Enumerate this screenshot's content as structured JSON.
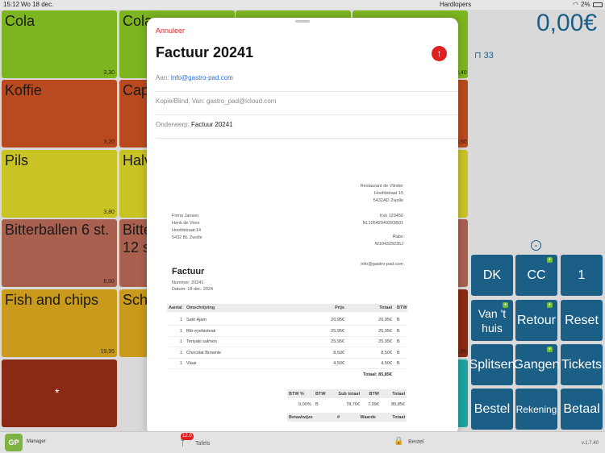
{
  "status_bar": {
    "time": "15:12",
    "date": "Wo 18 dec.",
    "center": "Hardlopers",
    "battery": "2%"
  },
  "total": {
    "amount": "0,00",
    "currency": "€"
  },
  "table_indicator": "33",
  "tiles": [
    {
      "name": "Cola",
      "price": "3,30",
      "color": "#7db51f"
    },
    {
      "name": "Koffie",
      "price": "3,20",
      "color": "#b94a1f"
    },
    {
      "name": "Pils",
      "price": "3,80",
      "color": "#c9c325"
    },
    {
      "name": "Bitterballen 6 st.",
      "price": "8,00",
      "color": "#a9604f"
    },
    {
      "name": "Fish and chips",
      "price": "19,95",
      "color": "#c99a1b"
    },
    {
      "name": "*",
      "price": "",
      "color": "#8a2a12"
    },
    {
      "name": "Cola",
      "price": "",
      "color": "#7db51f"
    },
    {
      "name": "Cap",
      "price": "",
      "color": "#b94a1f"
    },
    {
      "name": "Halv",
      "price": "",
      "color": "#c9c325"
    },
    {
      "name": "Bitte 12 st",
      "price": "",
      "color": "#a9604f"
    },
    {
      "name": "Schn",
      "price": "",
      "color": "#c99a1b"
    }
  ],
  "right_prices": [
    "3,40",
    "3,90",
    "",
    "",
    "5,95"
  ],
  "buttons": [
    "DK",
    "CC",
    "1",
    "Van 't huis",
    "Retour",
    "Reset",
    "Splitsen",
    "Gangen",
    "Tickets",
    "Bestel",
    "Rekening",
    "Betaal"
  ],
  "bottom_bar": {
    "manager": "Manager",
    "logo": "GP",
    "tafels": "Tafels",
    "tafels_badge": "12.0",
    "bestel": "Bestel",
    "version": "v.1.7.40"
  },
  "email": {
    "cancel": "Annuleer",
    "title": "Factuur 20241",
    "to_label": "Aan:",
    "to_value": "Info@gastro-pad.com",
    "cc_label": "Kopie/Blind, Van:",
    "cc_value": "gastro_pad@icloud.com",
    "subject_label": "Onderwerp:",
    "subject_value": "Factuur 20241"
  },
  "invoice": {
    "company_lines": [
      "Restaurant de Vlinder",
      "Hoofdstraat 15",
      "5432AD Zwolle"
    ],
    "client_lines": [
      "Firma Jansen",
      "Henk de Vries",
      "Hoofdstraat 14",
      "5432 BL Zwolle"
    ],
    "kvk_lines": [
      "Kvk 123456",
      "NL10542949393B01"
    ],
    "bank_lines": [
      "Rabo",
      "Nl104329235J"
    ],
    "email": "info@gastro-pad.com",
    "heading": "Factuur",
    "number": "Nummer: 20241",
    "date": "Datum: 18 dec. 2024",
    "headers": [
      "Aantal",
      "Omschrijving",
      "Prijs",
      "Totaal",
      "BTW"
    ],
    "rows": [
      [
        "1",
        "Saté Ajam",
        "20,95€",
        "20,95€",
        "B"
      ],
      [
        "1",
        "Rib-eyebisteak",
        "25,95€",
        "25,95€",
        "B"
      ],
      [
        "1",
        "Teriyaki salmon",
        "25,95€",
        "25,95€",
        "B"
      ],
      [
        "1",
        "Chocolat Brownie",
        "8,50€",
        "8,50€",
        "B"
      ],
      [
        "1",
        "Vlaai",
        "4,50€",
        "4,50€",
        "B"
      ]
    ],
    "total": "Totaal: 85,85€",
    "vat_headers": [
      "BTW %",
      "BTW",
      "Sub totaal",
      "BTW",
      "Totaal"
    ],
    "vat_row": [
      "9,00%",
      "B",
      "78,76€",
      "7,09€",
      "85,85€"
    ],
    "pay_headers": [
      "Betaalwijze",
      "#",
      "Waarde",
      "Totaal"
    ]
  }
}
